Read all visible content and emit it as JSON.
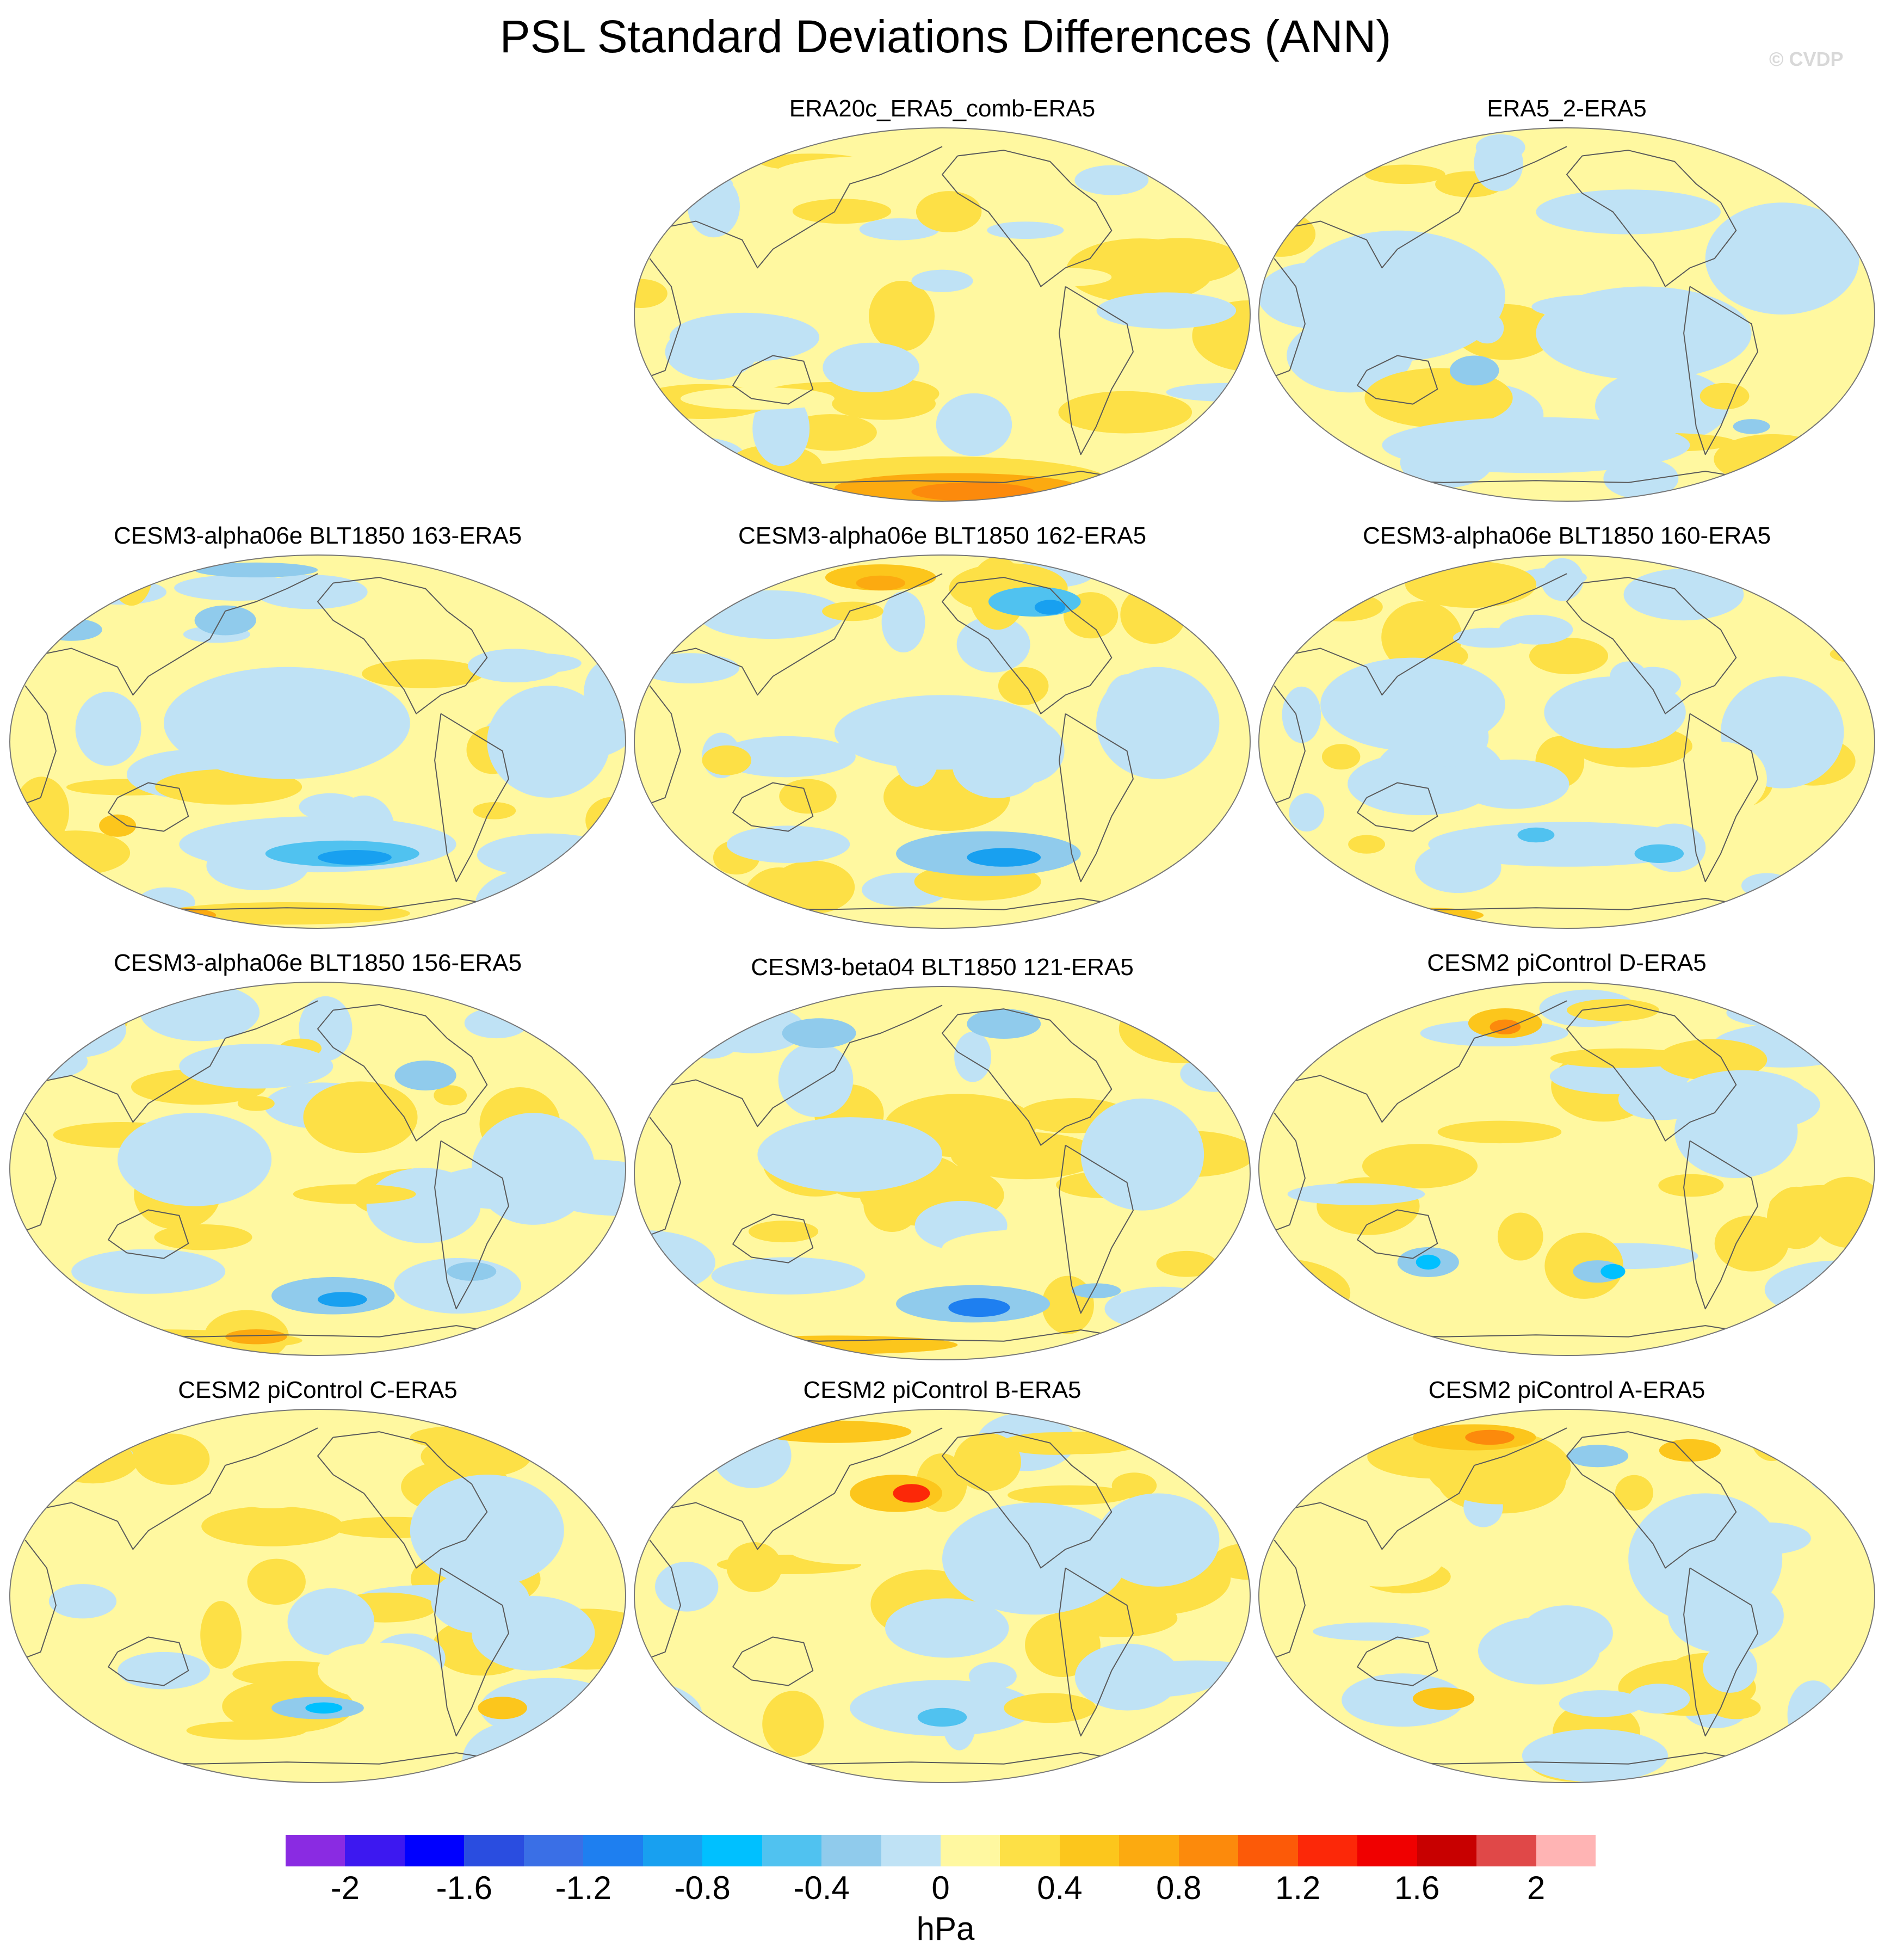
{
  "title": "PSL Standard Deviations Differences (ANN)",
  "watermark": "© CVDP",
  "units": "hPa",
  "colors": {
    "land_line": "#5a5a5a",
    "outline": "#777777"
  },
  "chart_data": {
    "type": "heatmap",
    "projection": "Robinson (Pacific-centered)",
    "variable": "PSL standard deviation difference",
    "season": "ANN",
    "colorbar": {
      "levels": [
        -2.2,
        -2,
        -1.8,
        -1.6,
        -1.4,
        -1.2,
        -1,
        -0.8,
        -0.6,
        -0.4,
        -0.2,
        0,
        0.2,
        0.4,
        0.6,
        0.8,
        1,
        1.2,
        1.4,
        1.6,
        1.8,
        2,
        2.2
      ],
      "colors": [
        "#8a2be2",
        "#3d18f0",
        "#0000ff",
        "#2a4de0",
        "#3a6fe6",
        "#1e7ff0",
        "#18a0f0",
        "#00c0ff",
        "#50c2f0",
        "#90cbec",
        "#bfe2f5",
        "#fff8a0",
        "#fde046",
        "#fcc61c",
        "#fcaa10",
        "#fc8a0c",
        "#fc5a08",
        "#fc2808",
        "#f00000",
        "#c80000",
        "#e04848",
        "#ffb4b4"
      ],
      "tick_labels": [
        "-2",
        "-1.6",
        "-1.2",
        "-0.8",
        "-0.4",
        "0",
        "0.4",
        "0.8",
        "1.2",
        "1.6",
        "2"
      ]
    },
    "panels": [
      {
        "title": "ERA20c_ERA5_comb-ERA5",
        "max_positive_level": 1.0,
        "max_negative_level": -0.4,
        "notes": "strong positive near Antarctica"
      },
      {
        "title": "ERA5_2-ERA5",
        "max_positive_level": 0.2,
        "max_negative_level": -0.4,
        "notes": "weak mixed differences"
      },
      {
        "title": "CESM3-alpha06e BLT1850 163-ERA5",
        "max_positive_level": 0.8,
        "max_negative_level": -1.0,
        "notes": "negative Southern Ocean, positive Antarctica"
      },
      {
        "title": "CESM3-alpha06e BLT1850 162-ERA5",
        "max_positive_level": 0.8,
        "max_negative_level": -1.2,
        "notes": "positive North Pacific high latitudes, negative South Pacific"
      },
      {
        "title": "CESM3-alpha06e BLT1850 160-ERA5",
        "max_positive_level": 0.8,
        "max_negative_level": -0.8,
        "notes": "mixed"
      },
      {
        "title": "CESM3-alpha06e BLT1850 156-ERA5",
        "max_positive_level": 1.0,
        "max_negative_level": -1.0,
        "notes": "negative South Pacific, positive Antarctica"
      },
      {
        "title": "CESM3-beta04 BLT1850 121-ERA5",
        "max_positive_level": 1.0,
        "max_negative_level": -1.2,
        "notes": "negative South Pacific, positive Antarctica"
      },
      {
        "title": "CESM2 piControl D-ERA5",
        "max_positive_level": 1.0,
        "max_negative_level": -0.8,
        "notes": "positive North Pacific"
      },
      {
        "title": "CESM2 piControl C-ERA5",
        "max_positive_level": 0.8,
        "max_negative_level": -0.8,
        "notes": "mostly positive"
      },
      {
        "title": "CESM2 piControl B-ERA5",
        "max_positive_level": 1.4,
        "max_negative_level": -0.8,
        "notes": "strong positive North Pacific"
      },
      {
        "title": "CESM2 piControl A-ERA5",
        "max_positive_level": 1.0,
        "max_negative_level": -0.6,
        "notes": "positive northern high latitudes"
      }
    ]
  }
}
